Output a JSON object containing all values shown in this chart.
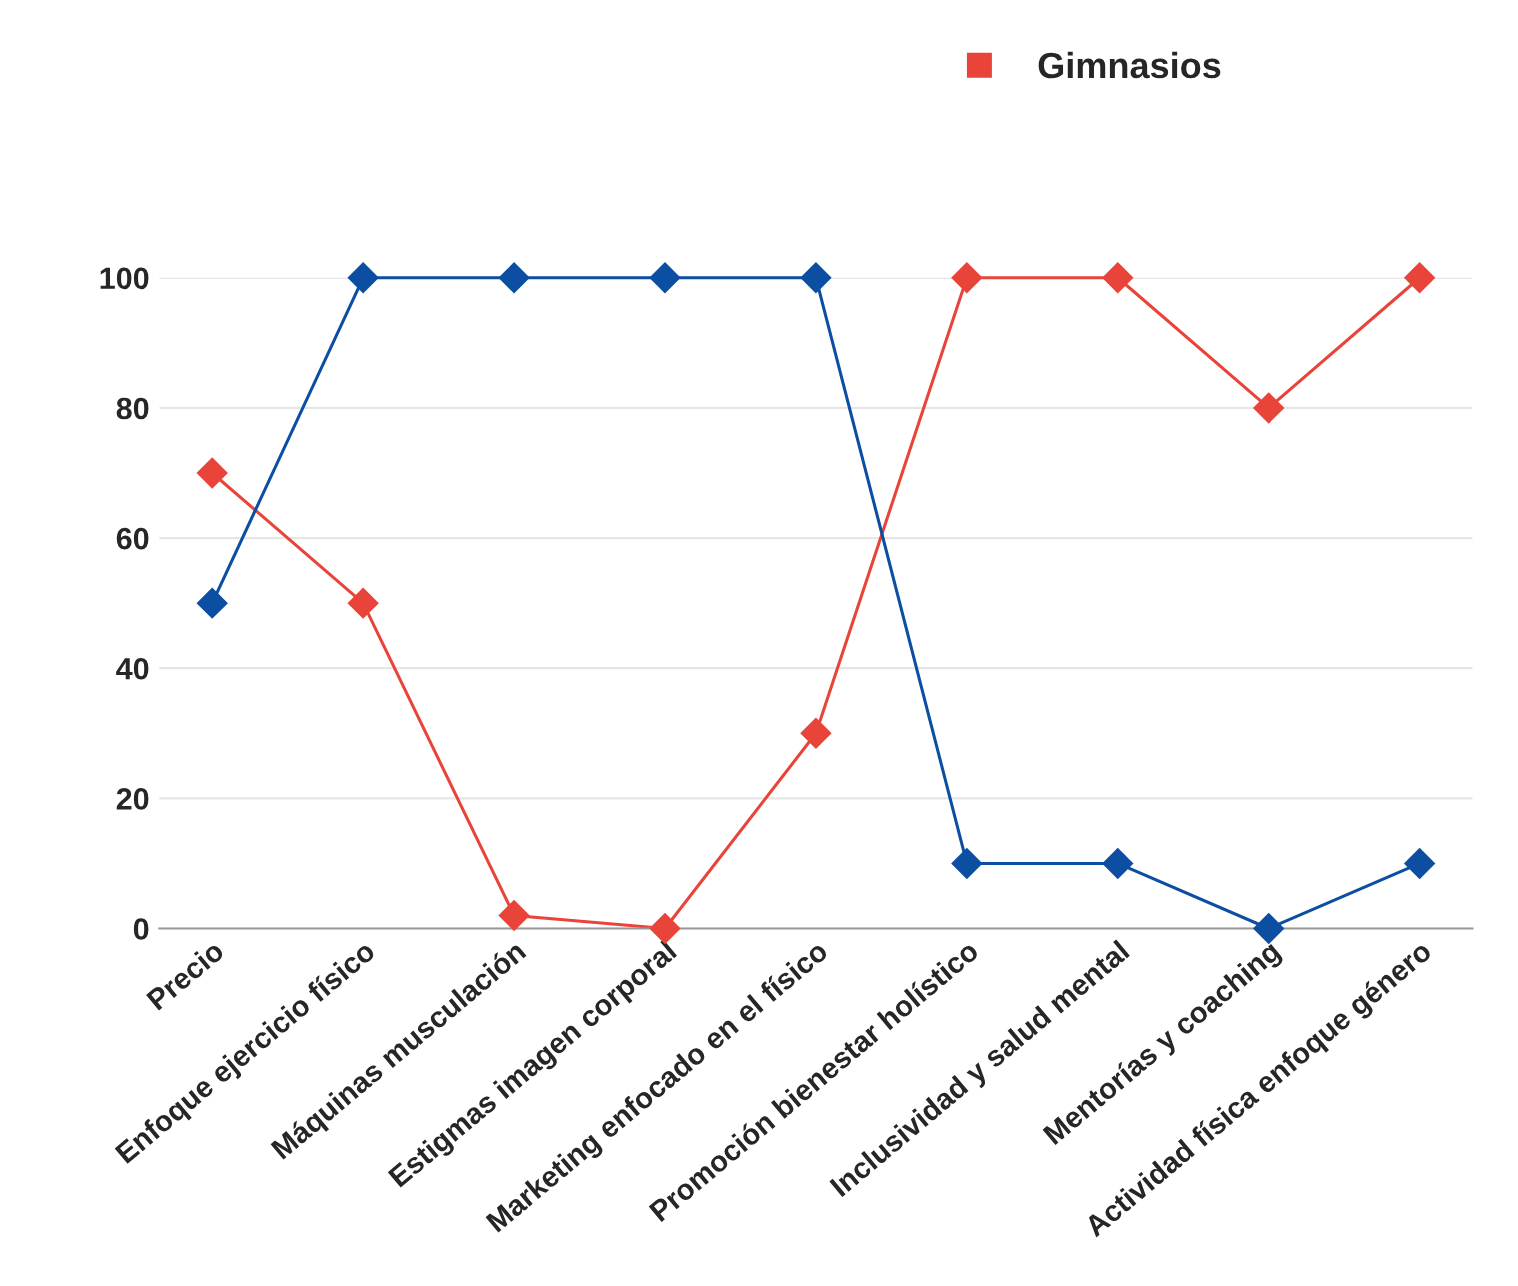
{
  "chart_data": {
    "type": "line",
    "categories": [
      "Precio",
      "Enfoque ejercicio físico",
      "Máquinas musculación",
      "Estigmas imagen corporal",
      "Marketing enfocado en el físico",
      "Promoción bienestar holístico",
      "Inclusividad y salud mental",
      "Mentorías y coaching",
      "Actividad física enfoque género"
    ],
    "series": [
      {
        "name": "Gimnasios",
        "color": "#e8443a",
        "values": [
          70,
          50,
          2,
          0,
          30,
          100,
          100,
          80,
          100
        ]
      },
      {
        "color": "#0b4ea2",
        "values": [
          50,
          100,
          100,
          100,
          100,
          10,
          10,
          0,
          10
        ]
      }
    ],
    "ylim": [
      0,
      100
    ],
    "yticks": [
      0,
      20,
      40,
      60,
      80,
      100
    ],
    "grid": "y",
    "legend": "top right",
    "marker": "diamond",
    "line_style": "solid"
  }
}
